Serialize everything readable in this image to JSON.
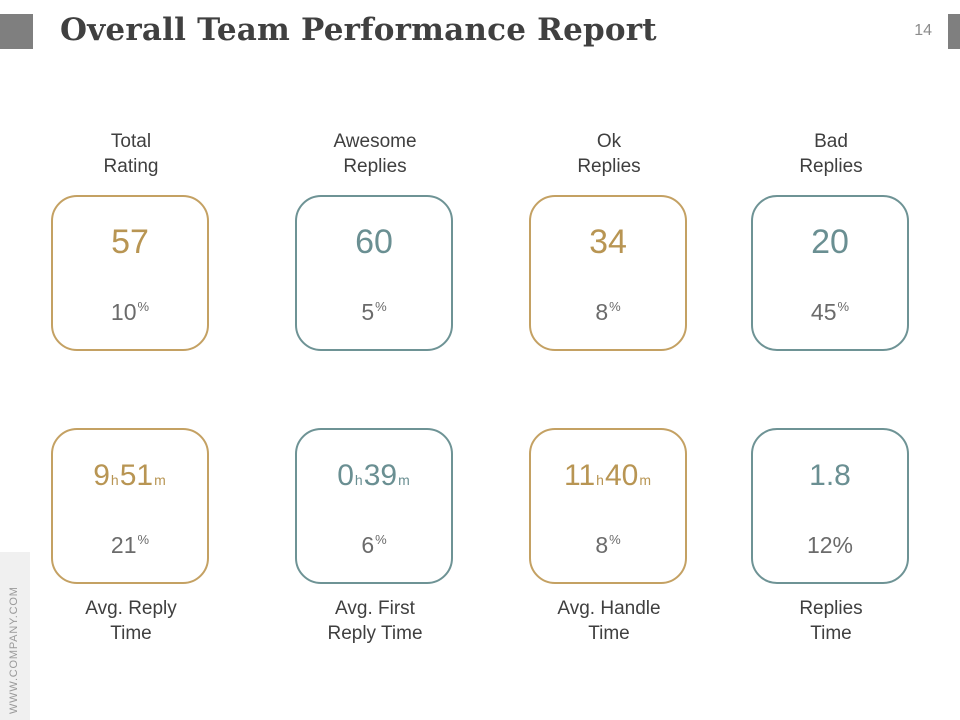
{
  "slide": {
    "title": "Overall Team Performance Report",
    "page_number": "14",
    "watermark": "WWW.COMPANY.COM"
  },
  "top_row": [
    {
      "label_line1": "Total",
      "label_line2": "Rating",
      "value": "57",
      "percent": "10",
      "percent_sign": "%",
      "accent": "gold"
    },
    {
      "label_line1": "Awesome",
      "label_line2": "Replies",
      "value": "60",
      "percent": "5",
      "percent_sign": "%",
      "accent": "teal"
    },
    {
      "label_line1": "Ok",
      "label_line2": "Replies",
      "value": "34",
      "percent": "8",
      "percent_sign": "%",
      "accent": "gold"
    },
    {
      "label_line1": "Bad",
      "label_line2": "Replies",
      "value": "20",
      "percent": "45",
      "percent_sign": "%",
      "accent": "teal"
    }
  ],
  "bottom_row": [
    {
      "hours": "9",
      "h_unit": "h",
      "minutes": "51",
      "m_unit": "m",
      "percent": "21",
      "percent_sign": "%",
      "label_line1": "Avg. Reply",
      "label_line2": "Time",
      "accent": "gold"
    },
    {
      "hours": "0",
      "h_unit": "h",
      "minutes": "39",
      "m_unit": "m",
      "percent": "6",
      "percent_sign": "%",
      "label_line1": "Avg. First",
      "label_line2": "Reply Time",
      "accent": "teal"
    },
    {
      "hours": "11",
      "h_unit": "h",
      "minutes": "40",
      "m_unit": "m",
      "percent": "8",
      "percent_sign": "%",
      "label_line1": "Avg. Handle",
      "label_line2": "Time",
      "accent": "gold"
    },
    {
      "value": "1.8",
      "percent_text": "12%",
      "label_line1": "Replies",
      "label_line2": "Time",
      "accent": "teal"
    }
  ],
  "colors": {
    "gold": "#c4a163",
    "teal": "#6e9395",
    "title": "#404040"
  }
}
